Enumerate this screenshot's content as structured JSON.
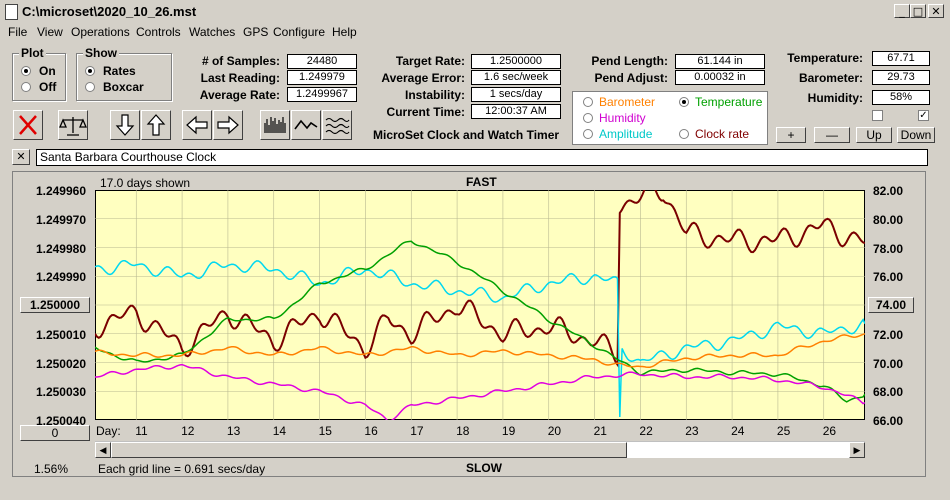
{
  "window": {
    "title": "C:\\microset\\2020_10_26.mst",
    "minimize": "_",
    "maximize": "□",
    "close": "✕"
  },
  "menu": [
    "File",
    "View",
    "Operations",
    "Controls",
    "Watches",
    "GPS",
    "Configure",
    "Help"
  ],
  "plot_group": {
    "title": "Plot",
    "options": [
      "On",
      "Off"
    ],
    "selected": "On"
  },
  "show_group": {
    "title": "Show",
    "options": [
      "Rates",
      "Boxcar"
    ],
    "selected": "Rates"
  },
  "stats": {
    "samples_label": "# of Samples:",
    "samples": "24480",
    "last_reading_label": "Last Reading:",
    "last_reading": "1.249979",
    "average_rate_label": "Average Rate:",
    "average_rate": "1.2499967",
    "target_rate_label": "Target Rate:",
    "target_rate": "1.2500000",
    "average_error_label": "Average Error:",
    "average_error": "1.6 sec/week",
    "instability_label": "Instability:",
    "instability": "1 secs/day",
    "current_time_label": "Current Time:",
    "current_time": "12:00:37 AM",
    "pend_length_label": "Pend Length:",
    "pend_length": "61.144 in",
    "pend_adjust_label": "Pend Adjust:",
    "pend_adjust": "0.00032 in"
  },
  "env": {
    "temperature_label": "Temperature:",
    "temperature": "67.71",
    "barometer_label": "Barometer:",
    "barometer": "29.73",
    "humidity_label": "Humidity:",
    "humidity": "58%"
  },
  "app_subtitle": "MicroSet Clock and Watch Timer",
  "overlay_options": [
    {
      "label": "Barometer",
      "color": "#ff8000",
      "selected": false
    },
    {
      "label": "Temperature",
      "color": "#00a000",
      "selected": true
    },
    {
      "label": "Humidity",
      "color": "#d000d0",
      "selected": false
    },
    {
      "label": "Clock rate",
      "color": "#800000",
      "selected": false
    },
    {
      "label": "Amplitude",
      "color": "#00c8c8",
      "selected": false
    }
  ],
  "scale_buttons": {
    "plus": "+",
    "minus": "—",
    "up": "Up",
    "down": "Down"
  },
  "clock_name": {
    "close": "✕",
    "value": "Santa Barbara Courthouse Clock"
  },
  "chart": {
    "days_shown": "17.0 days shown",
    "top_label": "FAST",
    "bottom_label": "SLOW",
    "grid_note": "Each grid line = 0.691 secs/day",
    "percent": "1.56%",
    "left_button": "0",
    "center_left_button": "1.250000",
    "center_right_button": "74.00",
    "day_axis_label": "Day:",
    "days": [
      "11",
      "12",
      "13",
      "14",
      "15",
      "16",
      "17",
      "18",
      "19",
      "20",
      "21",
      "22",
      "23",
      "24",
      "25",
      "26"
    ],
    "y_left": [
      "1.249960",
      "1.249970",
      "1.249980",
      "1.249990",
      "1.250000",
      "1.250010",
      "1.250020",
      "1.250030",
      "1.250040"
    ],
    "y_right": [
      "82.00",
      "80.00",
      "78.00",
      "76.00",
      "74.00",
      "72.00",
      "70.00",
      "68.00",
      "66.00"
    ],
    "bg_color": "#ffffc0"
  },
  "chart_data": {
    "type": "line",
    "x_unit": "day",
    "xlim": [
      10.1,
      26.9
    ],
    "ylim_left": [
      1.24996,
      1.25004
    ],
    "ylim_right": [
      66,
      82
    ],
    "series": [
      {
        "color": "#7a0000",
        "x": [
          10.1,
          11,
          12,
          13,
          14,
          15,
          16,
          16.5,
          17,
          18,
          19,
          20,
          21,
          21.5,
          21.55,
          22,
          22.5,
          23,
          24,
          25,
          26,
          26.9
        ],
        "y": [
          72.5,
          73.5,
          71,
          73.5,
          71.5,
          73.5,
          71,
          73,
          72,
          74,
          72,
          72.5,
          71.5,
          70.5,
          81,
          81.5,
          82,
          79,
          78.5,
          78.5,
          79.5,
          78.3
        ]
      },
      {
        "color": "#00d8f0",
        "x": [
          10.1,
          11,
          12,
          13,
          14,
          15,
          16,
          17,
          18,
          19,
          20,
          21,
          21.5,
          21.55,
          21.6,
          22,
          23,
          24,
          25,
          26,
          26.9
        ],
        "y": [
          76.5,
          76.8,
          76,
          76.8,
          76.5,
          75.5,
          76.5,
          75.5,
          75,
          74.5,
          75.5,
          76,
          75.5,
          66,
          71,
          70,
          71,
          71.5,
          72.5,
          72,
          72.7
        ]
      },
      {
        "color": "#00a000",
        "x": [
          10.1,
          11,
          12,
          13,
          14,
          15,
          16,
          17,
          18,
          19,
          20,
          21,
          21.5,
          22,
          23,
          24,
          25,
          26,
          26.5,
          26.9
        ],
        "y": [
          71,
          70,
          70.5,
          73,
          73,
          75.5,
          76.5,
          78.5,
          77,
          75,
          73,
          71.2,
          70.2,
          69.3,
          69.5,
          69.3,
          69.2,
          68.4,
          67.3,
          67.8
        ]
      },
      {
        "color": "#ff8000",
        "x": [
          10.1,
          11,
          12,
          13,
          14,
          15,
          16,
          17,
          18,
          19,
          20,
          21,
          21.5,
          22,
          23,
          24,
          25,
          26,
          26.9
        ],
        "y": [
          70.7,
          70.5,
          70.5,
          71,
          70.5,
          71,
          70.5,
          71,
          70.5,
          70.8,
          70.5,
          70.2,
          69.8,
          69.7,
          70.3,
          70.5,
          70.5,
          71.5,
          72
        ]
      },
      {
        "color": "#e000e0",
        "x": [
          10.1,
          11,
          12,
          13,
          14,
          15,
          16,
          16.5,
          17,
          18,
          19,
          20,
          21,
          22,
          23,
          24,
          25,
          26,
          26.9
        ],
        "y": [
          69,
          69.5,
          69.8,
          69,
          68.5,
          68,
          67,
          66,
          67,
          67.5,
          68,
          68.5,
          69,
          69.2,
          69,
          69,
          68.8,
          68.3,
          67.2
        ]
      }
    ]
  }
}
